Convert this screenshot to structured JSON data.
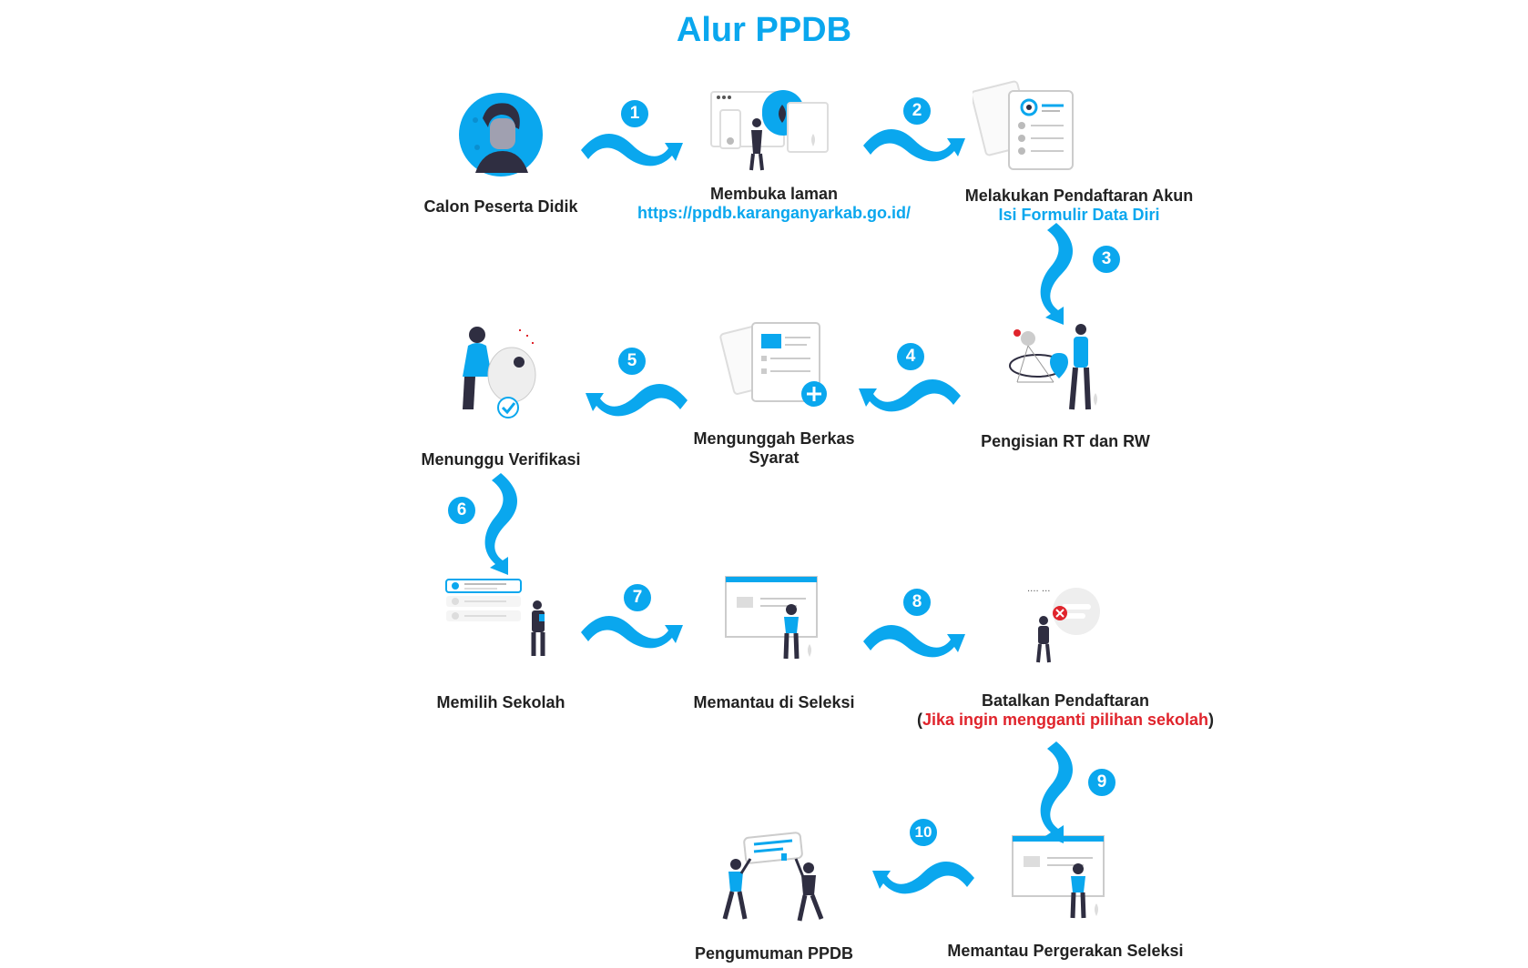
{
  "title": "Alur PPDB",
  "steps": [
    {
      "label": "Calon Peserta Didik"
    },
    {
      "label": "Membuka laman",
      "sub": "https://ppdb.karanganyarkab.go.id/"
    },
    {
      "label": "Melakukan Pendaftaran Akun",
      "sub": "Isi Formulir Data Diri"
    },
    {
      "label": "Pengisian RT dan RW"
    },
    {
      "label": "Mengunggah Berkas",
      "label2": "Syarat"
    },
    {
      "label": "Menunggu Verifikasi"
    },
    {
      "label": "Memilih Sekolah"
    },
    {
      "label": "Memantau di Seleksi"
    },
    {
      "label": "Batalkan Pendaftaran",
      "note_open": "(",
      "note": "Jika ingin mengganti pilihan sekolah",
      "note_close": ")"
    },
    {
      "label": "Memantau Pergerakan Seleksi"
    },
    {
      "label": "Pengumuman PPDB"
    }
  ],
  "arrows": [
    "1",
    "2",
    "3",
    "4",
    "5",
    "6",
    "7",
    "8",
    "9",
    "10"
  ],
  "colors": {
    "accent": "#0aa7ee",
    "warning": "#e0242c",
    "dark": "#2f2e41"
  }
}
